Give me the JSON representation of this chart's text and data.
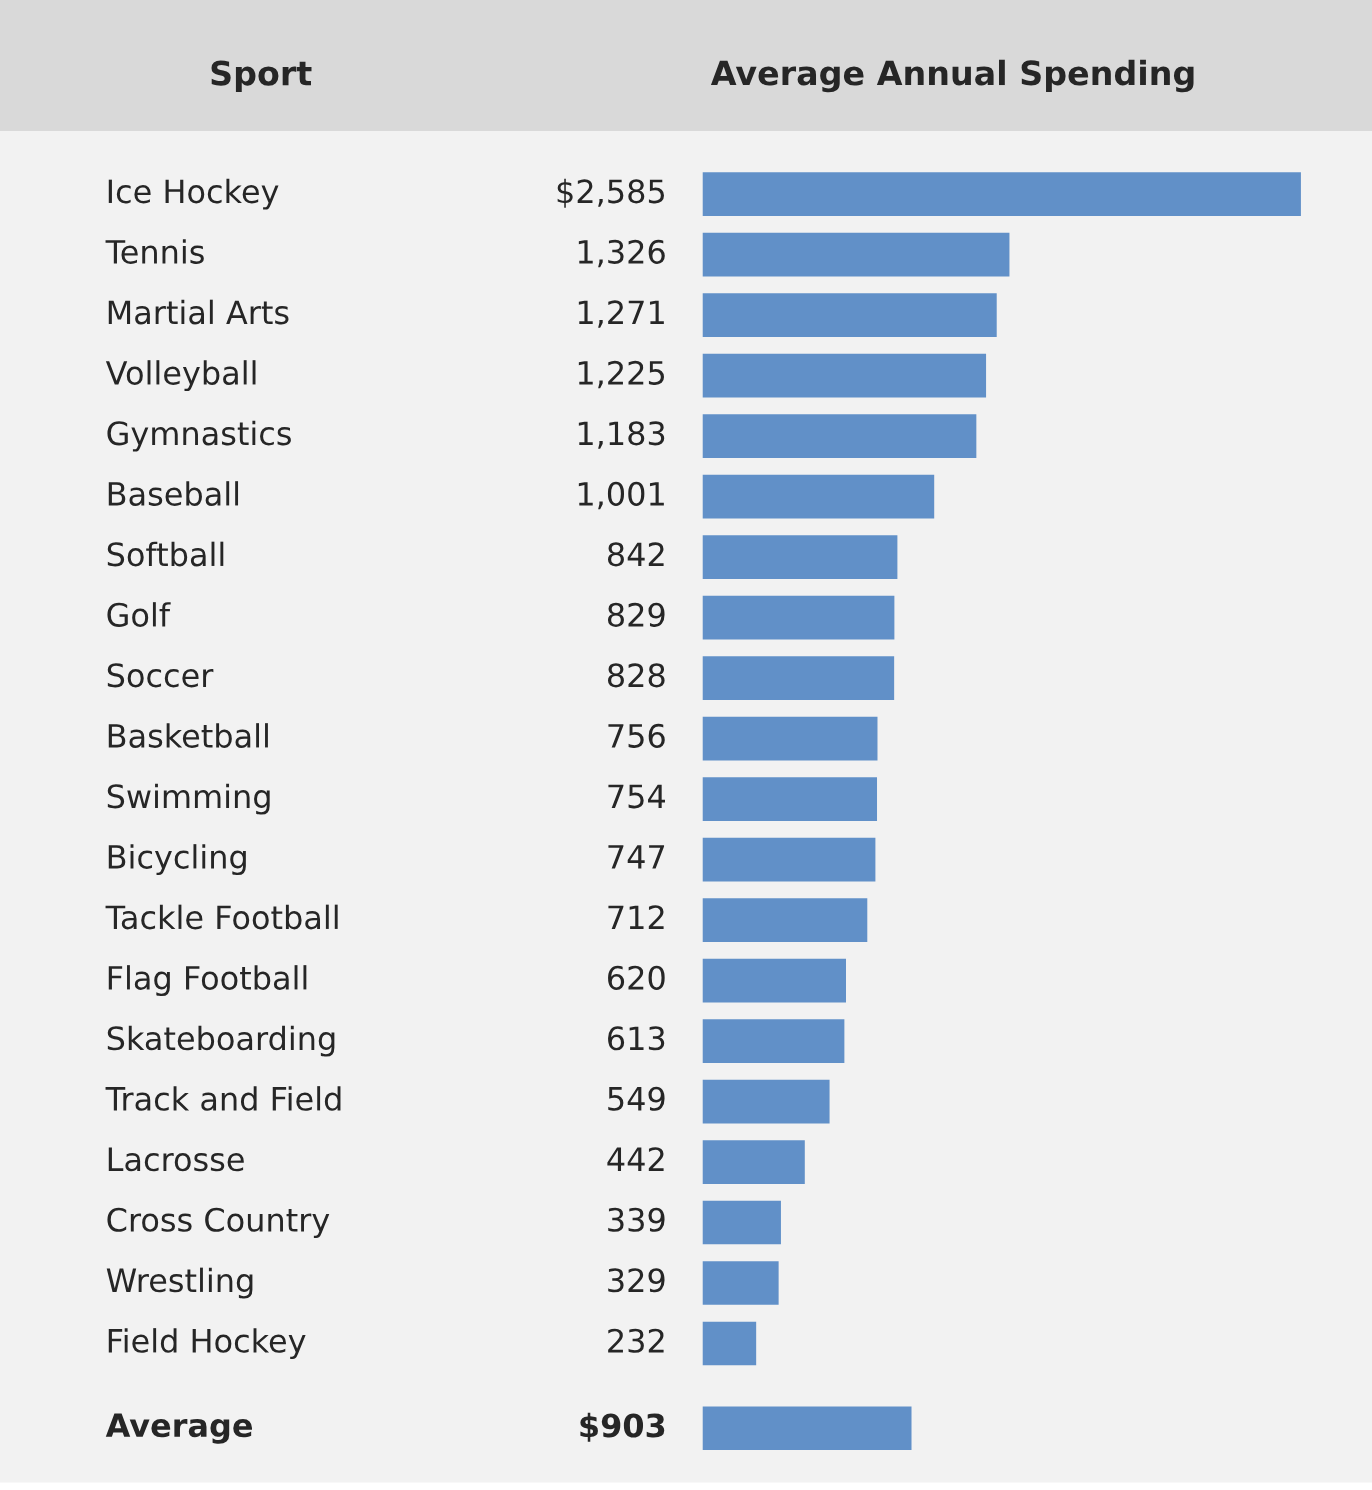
{
  "chart_data": {
    "type": "bar",
    "orientation": "horizontal",
    "ylabel": "Sport",
    "xlabel": "Average Annual Spending",
    "categories": [
      "Ice Hockey",
      "Tennis",
      "Martial Arts",
      "Volleyball",
      "Gymnastics",
      "Baseball",
      "Softball",
      "Golf",
      "Soccer",
      "Basketball",
      "Swimming",
      "Bicycling",
      "Tackle Football",
      "Flag Football",
      "Skateboarding",
      "Track and Field",
      "Lacrosse",
      "Cross Country",
      "Wrestling",
      "Field Hockey",
      "Average"
    ],
    "values": [
      2585,
      1326,
      1271,
      1225,
      1183,
      1001,
      842,
      829,
      828,
      756,
      754,
      747,
      712,
      620,
      613,
      549,
      442,
      339,
      329,
      232,
      903
    ],
    "value_labels": [
      "$2,585",
      "1,326",
      "1,271",
      "1,225",
      "1,183",
      "1,001",
      "842",
      "829",
      "828",
      "756",
      "754",
      "747",
      "712",
      "620",
      "613",
      "549",
      "442",
      "339",
      "329",
      "232",
      "$903"
    ],
    "color": "#6190c8"
  }
}
